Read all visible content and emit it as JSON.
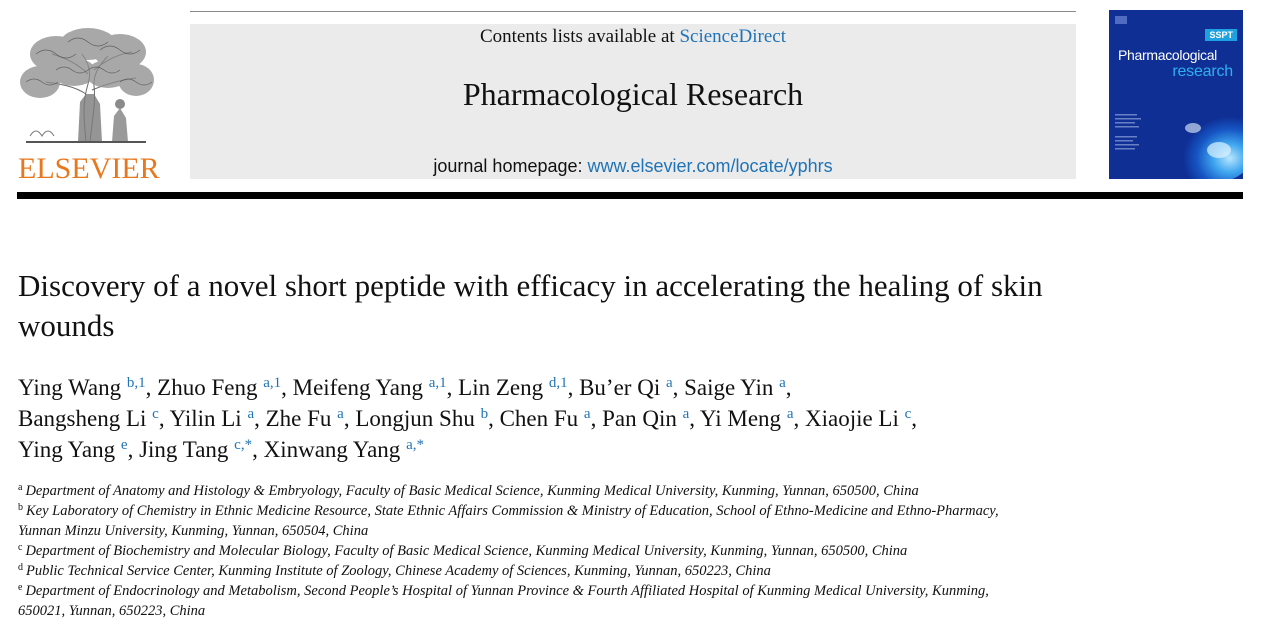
{
  "publisher": {
    "name": "ELSEVIER",
    "color": "#e8781e"
  },
  "banner": {
    "contents_prefix": "Contents lists available at ",
    "contents_link": "ScienceDirect",
    "journal_title": "Pharmacological Research",
    "homepage_prefix": "journal homepage: ",
    "homepage_link": "www.elsevier.com/locate/yphrs",
    "link_color": "#1f73b7"
  },
  "cover": {
    "badge": "SSPT",
    "title_line1": "Pharmacological",
    "title_line2": "research"
  },
  "article": {
    "title": "Discovery of a novel short peptide with efficacy in accelerating the healing of skin wounds"
  },
  "authors": [
    {
      "name": "Ying Wang",
      "sup": "b,1"
    },
    {
      "name": "Zhuo Feng",
      "sup": "a,1"
    },
    {
      "name": "Meifeng Yang",
      "sup": "a,1"
    },
    {
      "name": "Lin Zeng",
      "sup": "d,1"
    },
    {
      "name": "Bu’er Qi",
      "sup": "a"
    },
    {
      "name": "Saige Yin",
      "sup": "a"
    },
    {
      "name": "Bangsheng Li",
      "sup": "c"
    },
    {
      "name": "Yilin Li",
      "sup": "a"
    },
    {
      "name": "Zhe Fu",
      "sup": "a"
    },
    {
      "name": "Longjun Shu",
      "sup": "b"
    },
    {
      "name": "Chen Fu",
      "sup": "a"
    },
    {
      "name": "Pan Qin",
      "sup": "a"
    },
    {
      "name": "Yi Meng",
      "sup": "a"
    },
    {
      "name": "Xiaojie Li",
      "sup": "c"
    },
    {
      "name": "Ying Yang",
      "sup": "e"
    },
    {
      "name": "Jing Tang",
      "sup": "c,*"
    },
    {
      "name": "Xinwang Yang",
      "sup": "a,*"
    }
  ],
  "affiliations": [
    {
      "label": "a",
      "lines": [
        "Department of Anatomy and Histology & Embryology, Faculty of Basic Medical Science, Kunming Medical University, Kunming, Yunnan, 650500, China"
      ]
    },
    {
      "label": "b",
      "lines": [
        "Key Laboratory of Chemistry in Ethnic Medicine Resource, State Ethnic Affairs Commission & Ministry of Education, School of Ethno-Medicine and Ethno-Pharmacy,",
        "Yunnan Minzu University, Kunming, Yunnan, 650504, China"
      ]
    },
    {
      "label": "c",
      "lines": [
        "Department of Biochemistry and Molecular Biology, Faculty of Basic Medical Science, Kunming Medical University, Kunming, Yunnan, 650500, China"
      ]
    },
    {
      "label": "d",
      "lines": [
        "Public Technical Service Center, Kunming Institute of Zoology, Chinese Academy of Sciences, Kunming, Yunnan, 650223, China"
      ]
    },
    {
      "label": "e",
      "lines": [
        "Department of Endocrinology and Metabolism, Second People’s Hospital of Yunnan Province & Fourth Affiliated Hospital of Kunming Medical University, Kunming,",
        "650021, Yunnan, 650223, China"
      ]
    }
  ]
}
